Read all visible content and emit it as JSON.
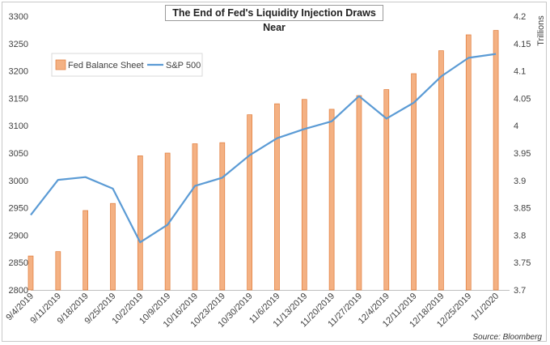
{
  "chart_data": {
    "type": "bar",
    "title": "The End of Fed's Liquidity Injection Draws Near",
    "source": "Source: Bloomberg",
    "categories": [
      "9/4/2019",
      "9/11/2019",
      "9/18/2019",
      "9/25/2019",
      "10/2/2019",
      "10/9/2019",
      "10/16/2019",
      "10/23/2019",
      "10/30/2019",
      "11/6/2019",
      "11/13/2019",
      "11/20/2019",
      "11/27/2019",
      "12/4/2019",
      "12/11/2019",
      "12/18/2019",
      "12/25/2019",
      "1/1/2020"
    ],
    "left_axis": {
      "label": "",
      "ylim": [
        2800,
        3300
      ],
      "ticks": [
        2800,
        2850,
        2900,
        2950,
        3000,
        3050,
        3100,
        3150,
        3200,
        3250,
        3300
      ]
    },
    "right_axis": {
      "label": "Trillions",
      "ylim": [
        3.7,
        4.2
      ],
      "ticks": [
        "3.7",
        "3.75",
        "3.8",
        "3.85",
        "3.9",
        "3.95",
        "4",
        "4.05",
        "4.1",
        "4.15",
        "4.2"
      ]
    },
    "series": [
      {
        "name": "Fed Balance Sheet",
        "type": "bar",
        "axis": "right",
        "color": "#f4b183",
        "edge": "#e07b39",
        "values": [
          3.762,
          3.77,
          3.845,
          3.858,
          3.945,
          3.95,
          3.967,
          3.969,
          4.02,
          4.04,
          4.048,
          4.03,
          4.055,
          4.066,
          4.095,
          4.137,
          4.166,
          4.174
        ]
      },
      {
        "name": "S&P 500",
        "type": "line",
        "axis": "left",
        "color": "#5b9bd5",
        "values": [
          2937,
          3001,
          3006,
          2985,
          2887,
          2919,
          2990,
          3005,
          3046,
          3077,
          3094,
          3108,
          3154,
          3113,
          3142,
          3190,
          3224,
          3231
        ]
      }
    ],
    "legend": {
      "position": "top-left"
    },
    "grid": false
  }
}
